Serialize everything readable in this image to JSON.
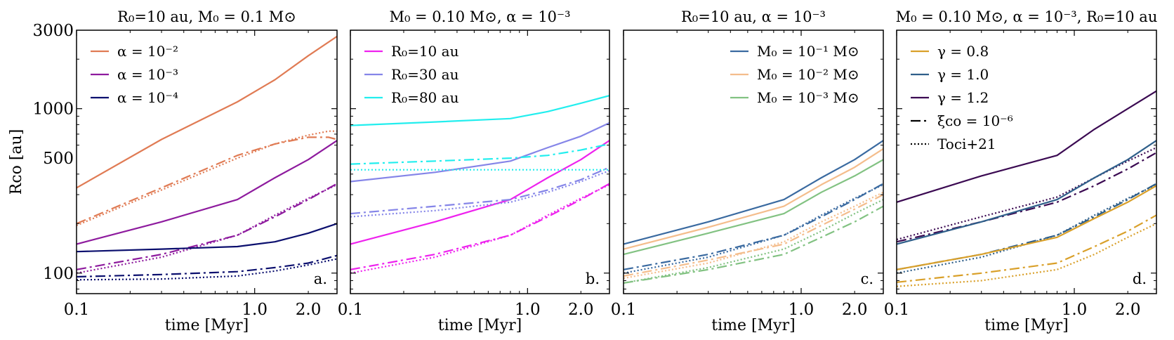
{
  "chart_data": [
    {
      "type": "line",
      "panel_label": "a.",
      "title": "R₀=10 au, M₀ = 0.1 M⊙",
      "xlabel": "time [Myr]",
      "ylabel": "Rᴄᴏ [au]",
      "xscale": "log",
      "yscale": "log",
      "xlim": [
        0.1,
        2.9
      ],
      "ylim": [
        75,
        3000
      ],
      "xticklabels": [
        "0.1",
        "1.0",
        "2.0"
      ],
      "yticklabels": [
        "3000",
        "1000",
        "500",
        "100"
      ],
      "legend_position": "upper-left",
      "legend": [
        {
          "label": "α = 10⁻²",
          "color": "#e07b54",
          "style": "solid"
        },
        {
          "label": "α = 10⁻³",
          "color": "#8e1b9e",
          "style": "solid"
        },
        {
          "label": "α = 10⁻⁴",
          "color": "#0b0f6e",
          "style": "solid"
        }
      ],
      "series": [
        {
          "name": "α = 10⁻²",
          "color": "#e07b54",
          "style": "solid",
          "x": [
            0.1,
            0.3,
            0.8,
            1.3,
            2.0,
            2.9
          ],
          "y": [
            330,
            650,
            1100,
            1500,
            2100,
            2750
          ]
        },
        {
          "name": "α = 10⁻² dashdot",
          "color": "#e07b54",
          "style": "dashdot",
          "x": [
            0.1,
            0.3,
            0.8,
            1.3,
            2.0,
            2.6,
            2.9
          ],
          "y": [
            200,
            330,
            520,
            610,
            670,
            670,
            650
          ]
        },
        {
          "name": "α = 10⁻² dotted",
          "color": "#e07b54",
          "style": "dotted",
          "x": [
            0.1,
            0.3,
            0.8,
            1.3,
            2.0,
            2.6,
            2.9
          ],
          "y": [
            195,
            320,
            500,
            610,
            690,
            730,
            730
          ]
        },
        {
          "name": "α = 10⁻³",
          "color": "#8e1b9e",
          "style": "solid",
          "x": [
            0.1,
            0.3,
            0.8,
            1.3,
            2.0,
            2.9
          ],
          "y": [
            150,
            205,
            280,
            380,
            490,
            640
          ]
        },
        {
          "name": "α = 10⁻³ dashdot",
          "color": "#8e1b9e",
          "style": "dashdot",
          "x": [
            0.1,
            0.3,
            0.8,
            1.3,
            2.0,
            2.9
          ],
          "y": [
            105,
            130,
            170,
            220,
            280,
            350
          ]
        },
        {
          "name": "α = 10⁻³ dotted",
          "color": "#8e1b9e",
          "style": "dotted",
          "x": [
            0.1,
            0.3,
            0.8,
            1.3,
            2.0,
            2.9
          ],
          "y": [
            100,
            125,
            170,
            225,
            285,
            345
          ]
        },
        {
          "name": "α = 10⁻⁴",
          "color": "#0b0f6e",
          "style": "solid",
          "x": [
            0.1,
            0.3,
            0.8,
            1.3,
            2.0,
            2.9
          ],
          "y": [
            135,
            140,
            145,
            155,
            175,
            200
          ]
        },
        {
          "name": "α = 10⁻⁴ dashdot",
          "color": "#0b0f6e",
          "style": "dashdot",
          "x": [
            0.1,
            0.3,
            0.8,
            1.3,
            2.0,
            2.9
          ],
          "y": [
            95,
            98,
            102,
            108,
            115,
            128
          ]
        },
        {
          "name": "α = 10⁻⁴ dotted",
          "color": "#0b0f6e",
          "style": "dotted",
          "x": [
            0.1,
            0.3,
            0.8,
            1.3,
            2.0,
            2.9
          ],
          "y": [
            91,
            92,
            96,
            103,
            112,
            122
          ]
        }
      ]
    },
    {
      "type": "line",
      "panel_label": "b.",
      "title": "M₀ = 0.10 M⊙, α = 10⁻³",
      "xlabel": "time [Myr]",
      "xscale": "log",
      "yscale": "log",
      "xlim": [
        0.1,
        2.9
      ],
      "ylim": [
        75,
        3000
      ],
      "xticklabels": [
        "0.1",
        "1.0",
        "2.0"
      ],
      "legend_position": "upper-left",
      "legend": [
        {
          "label": "R₀=10 au",
          "color": "#ee22ee",
          "style": "solid"
        },
        {
          "label": "R₀=30 au",
          "color": "#8585e8",
          "style": "solid"
        },
        {
          "label": "R₀=80 au",
          "color": "#22eeee",
          "style": "solid"
        }
      ],
      "series": [
        {
          "name": "R₀=10 au",
          "color": "#ee22ee",
          "style": "solid",
          "x": [
            0.1,
            0.3,
            0.8,
            1.3,
            2.0,
            2.9
          ],
          "y": [
            150,
            205,
            280,
            380,
            490,
            640
          ]
        },
        {
          "name": "R₀=10 au dashdot",
          "color": "#ee22ee",
          "style": "dashdot",
          "x": [
            0.1,
            0.3,
            0.8,
            1.3,
            2.0,
            2.9
          ],
          "y": [
            105,
            130,
            170,
            220,
            280,
            350
          ]
        },
        {
          "name": "R₀=10 au dotted",
          "color": "#ee22ee",
          "style": "dotted",
          "x": [
            0.1,
            0.3,
            0.8,
            1.3,
            2.0,
            2.9
          ],
          "y": [
            100,
            125,
            170,
            225,
            285,
            345
          ]
        },
        {
          "name": "R₀=30 au",
          "color": "#8585e8",
          "style": "solid",
          "x": [
            0.1,
            0.3,
            0.8,
            1.3,
            2.0,
            2.9
          ],
          "y": [
            360,
            410,
            480,
            580,
            680,
            820
          ]
        },
        {
          "name": "R₀=30 au dashdot",
          "color": "#8585e8",
          "style": "dashdot",
          "x": [
            0.1,
            0.3,
            0.8,
            1.3,
            2.0,
            2.9
          ],
          "y": [
            230,
            255,
            280,
            320,
            370,
            440
          ]
        },
        {
          "name": "R₀=30 au dotted",
          "color": "#8585e8",
          "style": "dotted",
          "x": [
            0.1,
            0.3,
            0.8,
            1.3,
            2.0,
            2.9
          ],
          "y": [
            220,
            240,
            270,
            310,
            360,
            420
          ]
        },
        {
          "name": "R₀=80 au",
          "color": "#22eeee",
          "style": "solid",
          "x": [
            0.1,
            0.3,
            0.8,
            1.3,
            2.0,
            2.9
          ],
          "y": [
            790,
            830,
            870,
            960,
            1080,
            1200
          ]
        },
        {
          "name": "R₀=80 au dashdot",
          "color": "#22eeee",
          "style": "dashdot",
          "x": [
            0.1,
            0.3,
            0.8,
            1.3,
            2.0,
            2.9
          ],
          "y": [
            460,
            480,
            500,
            520,
            560,
            610
          ]
        },
        {
          "name": "R₀=80 au dotted",
          "color": "#22eeee",
          "style": "dotted",
          "x": [
            0.1,
            0.3,
            0.8,
            1.3,
            2.0,
            2.9
          ],
          "y": [
            425,
            425,
            425,
            425,
            425,
            425
          ]
        }
      ]
    },
    {
      "type": "line",
      "panel_label": "c.",
      "title": "R₀=10 au, α = 10⁻³",
      "xlabel": "time [Myr]",
      "xscale": "log",
      "yscale": "log",
      "xlim": [
        0.1,
        2.9
      ],
      "ylim": [
        75,
        3000
      ],
      "xticklabels": [
        "0.1",
        "1.0",
        "2.0"
      ],
      "legend_position": "upper-right",
      "legend": [
        {
          "label": "M₀ = 10⁻¹ M⊙",
          "color": "#3a6aa0",
          "style": "solid"
        },
        {
          "label": "M₀ = 10⁻² M⊙",
          "color": "#f4bd8c",
          "style": "solid"
        },
        {
          "label": "M₀ = 10⁻³ M⊙",
          "color": "#82c282",
          "style": "solid"
        }
      ],
      "series": [
        {
          "name": "M₀ = 10⁻¹ M⊙",
          "color": "#3a6aa0",
          "style": "solid",
          "x": [
            0.1,
            0.3,
            0.8,
            1.3,
            2.0,
            2.9
          ],
          "y": [
            150,
            205,
            280,
            380,
            490,
            640
          ]
        },
        {
          "name": "M₀ = 10⁻¹ dashdot",
          "color": "#3a6aa0",
          "style": "dashdot",
          "x": [
            0.1,
            0.3,
            0.8,
            1.3,
            2.0,
            2.9
          ],
          "y": [
            105,
            130,
            170,
            220,
            280,
            350
          ]
        },
        {
          "name": "M₀ = 10⁻¹ dotted",
          "color": "#3a6aa0",
          "style": "dotted",
          "x": [
            0.1,
            0.3,
            0.8,
            1.3,
            2.0,
            2.9
          ],
          "y": [
            100,
            125,
            170,
            225,
            285,
            345
          ]
        },
        {
          "name": "M₀ = 10⁻² M⊙",
          "color": "#f4bd8c",
          "style": "solid",
          "x": [
            0.1,
            0.3,
            0.8,
            1.3,
            2.0,
            2.9
          ],
          "y": [
            140,
            190,
            255,
            345,
            440,
            570
          ]
        },
        {
          "name": "M₀ = 10⁻² dashdot",
          "color": "#f4bd8c",
          "style": "dashdot",
          "x": [
            0.1,
            0.3,
            0.8,
            1.3,
            2.0,
            2.9
          ],
          "y": [
            96,
            120,
            150,
            195,
            245,
            300
          ]
        },
        {
          "name": "M₀ = 10⁻² dotted",
          "color": "#f4bd8c",
          "style": "dotted",
          "x": [
            0.1,
            0.3,
            0.8,
            1.3,
            2.0,
            2.9
          ],
          "y": [
            93,
            115,
            155,
            205,
            255,
            310
          ]
        },
        {
          "name": "M₀ = 10⁻³ M⊙",
          "color": "#82c282",
          "style": "solid",
          "x": [
            0.1,
            0.3,
            0.8,
            1.3,
            2.0,
            2.9
          ],
          "y": [
            130,
            175,
            230,
            310,
            390,
            490
          ]
        },
        {
          "name": "M₀ = 10⁻³ dashdot",
          "color": "#82c282",
          "style": "dashdot",
          "x": [
            0.1,
            0.3,
            0.8,
            1.3,
            2.0,
            2.9
          ],
          "y": [
            87,
            105,
            130,
            165,
            205,
            255
          ]
        },
        {
          "name": "M₀ = 10⁻³ dotted",
          "color": "#82c282",
          "style": "dotted",
          "x": [
            0.1,
            0.3,
            0.8,
            1.3,
            2.0,
            2.9
          ],
          "y": [
            87,
            108,
            140,
            180,
            230,
            280
          ]
        }
      ]
    },
    {
      "type": "line",
      "panel_label": "d.",
      "title": "M₀ = 0.10 M⊙, α = 10⁻³, R₀=10 au",
      "xlabel": "time [Myr]",
      "xscale": "log",
      "yscale": "log",
      "xlim": [
        0.1,
        2.9
      ],
      "ylim": [
        75,
        3000
      ],
      "xticklabels": [
        "0.1",
        "1.0",
        "2.0"
      ],
      "legend_position": "upper-left",
      "legend": [
        {
          "label": "γ = 0.8",
          "color": "#d9a02a",
          "style": "solid"
        },
        {
          "label": "γ = 1.0",
          "color": "#2f5f8a",
          "style": "solid"
        },
        {
          "label": "γ = 1.2",
          "color": "#3b0a52",
          "style": "solid"
        },
        {
          "label": "ξᴄᴏ = 10⁻⁶",
          "color": "#000000",
          "style": "dashdot"
        },
        {
          "label": "Toci+21",
          "color": "#000000",
          "style": "dotted"
        }
      ],
      "series": [
        {
          "name": "γ = 1.2",
          "color": "#3b0a52",
          "style": "solid",
          "x": [
            0.1,
            0.3,
            0.8,
            1.3,
            2.0,
            2.9
          ],
          "y": [
            270,
            390,
            520,
            750,
            1000,
            1280
          ]
        },
        {
          "name": "γ = 1.2 dashdot",
          "color": "#3b0a52",
          "style": "dashdot",
          "x": [
            0.1,
            0.3,
            0.8,
            1.3,
            2.0,
            2.9
          ],
          "y": [
            155,
            205,
            270,
            340,
            430,
            540
          ]
        },
        {
          "name": "γ = 1.2 dotted",
          "color": "#3b0a52",
          "style": "dotted",
          "x": [
            0.1,
            0.3,
            0.8,
            1.3,
            2.0,
            2.9
          ],
          "y": [
            160,
            220,
            290,
            380,
            480,
            580
          ]
        },
        {
          "name": "γ = 1.0",
          "color": "#2f5f8a",
          "style": "solid",
          "x": [
            0.1,
            0.3,
            0.8,
            1.3,
            2.0,
            2.9
          ],
          "y": [
            150,
            205,
            280,
            380,
            490,
            640
          ]
        },
        {
          "name": "γ = 1.0 dashdot",
          "color": "#2f5f8a",
          "style": "dashdot",
          "x": [
            0.1,
            0.3,
            0.8,
            1.3,
            2.0,
            2.9
          ],
          "y": [
            105,
            130,
            170,
            220,
            280,
            350
          ]
        },
        {
          "name": "γ = 1.0 dotted",
          "color": "#2f5f8a",
          "style": "dotted",
          "x": [
            0.1,
            0.3,
            0.8,
            1.3,
            2.0,
            2.9
          ],
          "y": [
            100,
            125,
            170,
            225,
            285,
            345
          ]
        },
        {
          "name": "γ = 0.8",
          "color": "#d9a02a",
          "style": "solid",
          "x": [
            0.1,
            0.3,
            0.8,
            1.3,
            2.0,
            2.9
          ],
          "y": [
            105,
            130,
            165,
            215,
            270,
            340
          ]
        },
        {
          "name": "γ = 0.8 dashdot",
          "color": "#d9a02a",
          "style": "dashdot",
          "x": [
            0.1,
            0.3,
            0.8,
            1.3,
            2.0,
            2.9
          ],
          "y": [
            88,
            100,
            115,
            145,
            180,
            225
          ]
        },
        {
          "name": "γ = 0.8 dotted",
          "color": "#d9a02a",
          "style": "dotted",
          "x": [
            0.1,
            0.3,
            0.8,
            1.3,
            2.0,
            2.9
          ],
          "y": [
            83,
            90,
            105,
            130,
            165,
            200
          ]
        }
      ]
    }
  ]
}
